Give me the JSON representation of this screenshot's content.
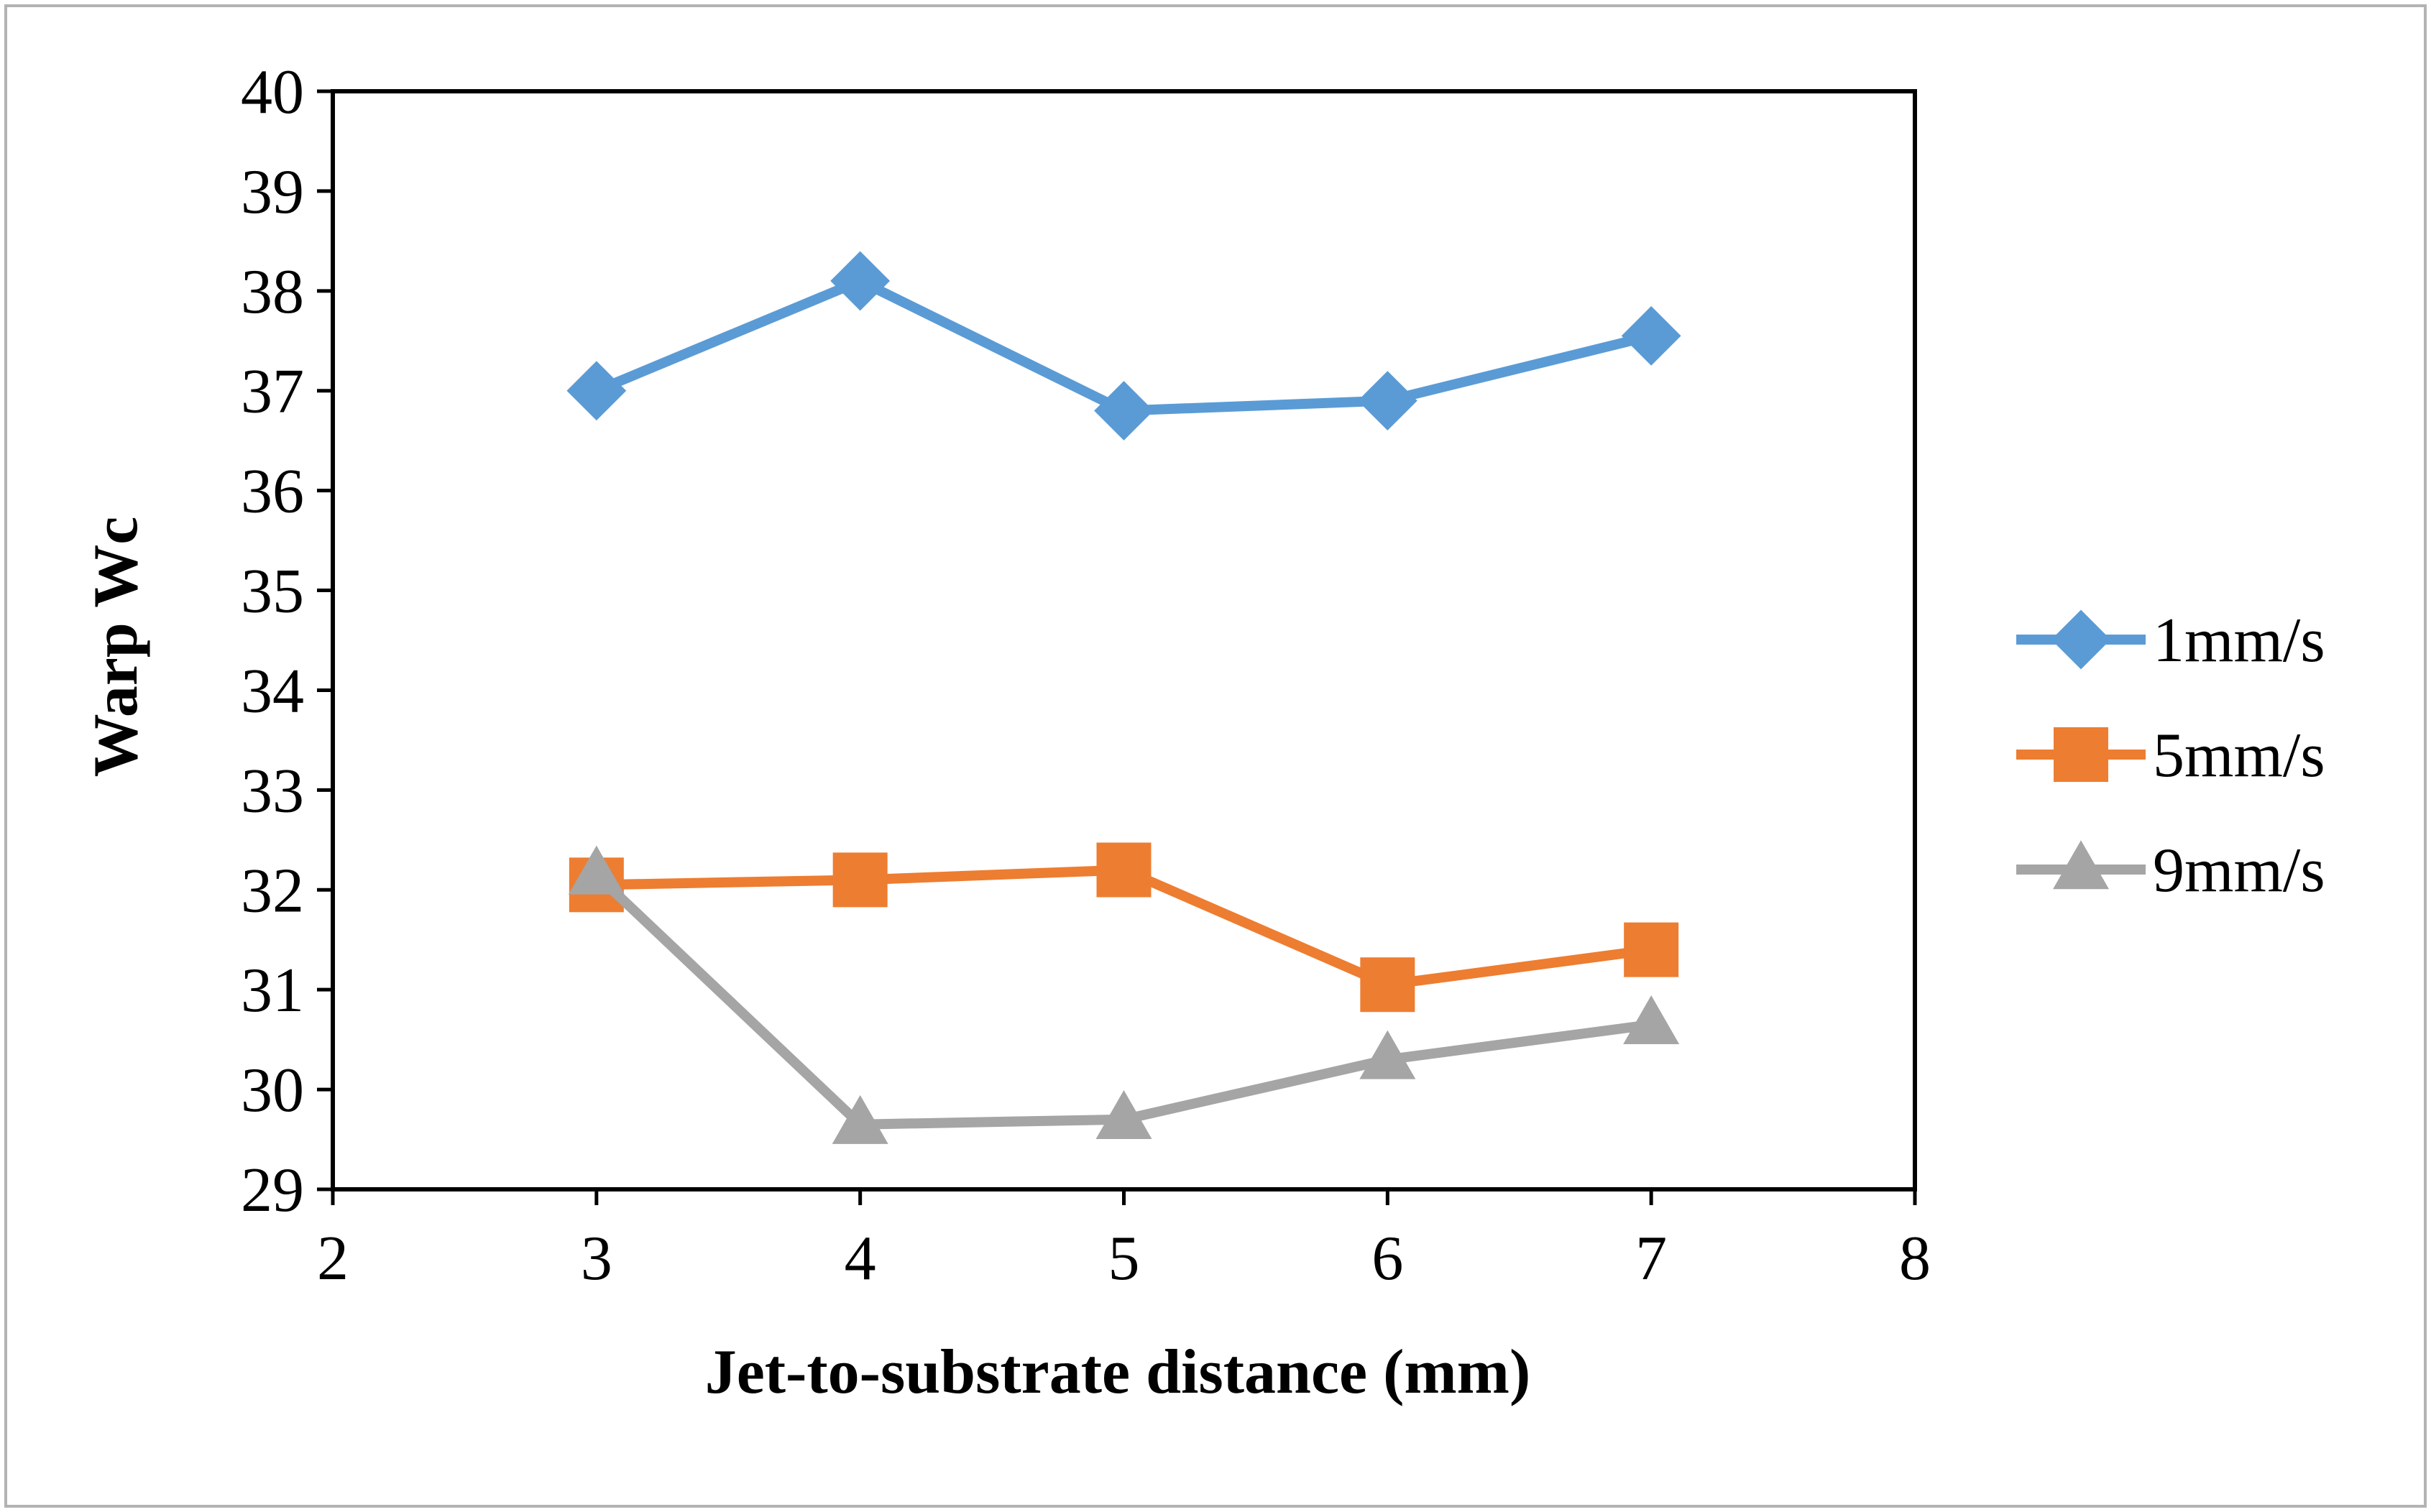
{
  "chart_data": {
    "type": "line",
    "title": "",
    "xlabel": "Jet-to-substrate distance (mm)",
    "ylabel": "Warp Wc",
    "xlim": [
      2,
      8
    ],
    "ylim": [
      29,
      40
    ],
    "xticks": [
      2,
      3,
      4,
      5,
      6,
      7,
      8
    ],
    "yticks": [
      29,
      30,
      31,
      32,
      33,
      34,
      35,
      36,
      37,
      38,
      39,
      40
    ],
    "grid": false,
    "legend_position": "right",
    "x": [
      3,
      4,
      5,
      6,
      7
    ],
    "series": [
      {
        "name": "1mm/s",
        "marker": "diamond",
        "color": "#5b9bd5",
        "values": [
          37.0,
          38.1,
          36.8,
          36.9,
          37.55
        ]
      },
      {
        "name": "5mm/s",
        "marker": "square",
        "color": "#ed7d31",
        "values": [
          32.05,
          32.1,
          32.2,
          31.05,
          31.4
        ]
      },
      {
        "name": "9mm/s",
        "marker": "triangle",
        "color": "#a5a5a5",
        "values": [
          32.15,
          29.65,
          29.7,
          30.3,
          30.65
        ]
      }
    ]
  }
}
